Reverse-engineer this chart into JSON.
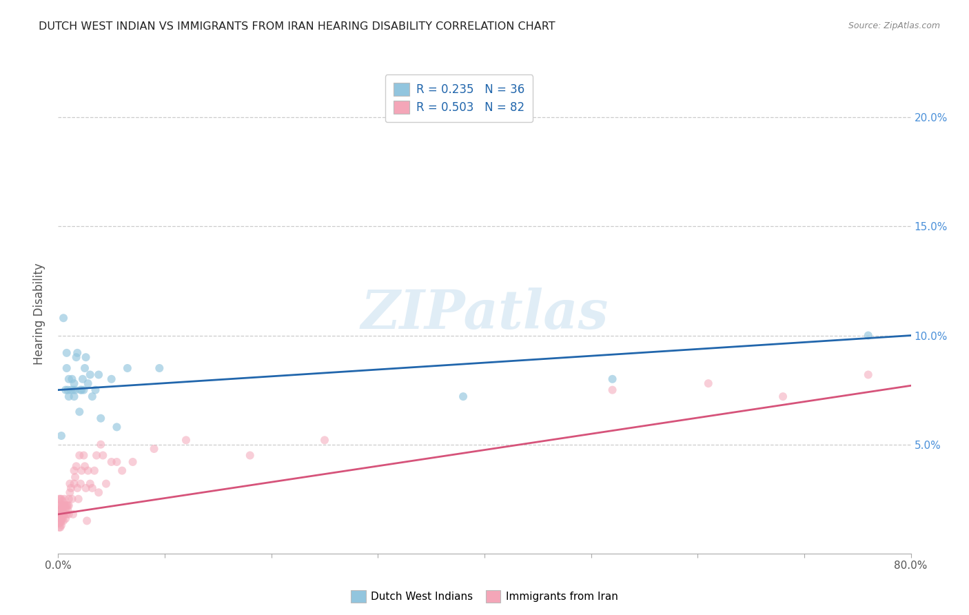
{
  "title": "DUTCH WEST INDIAN VS IMMIGRANTS FROM IRAN HEARING DISABILITY CORRELATION CHART",
  "source": "Source: ZipAtlas.com",
  "ylabel": "Hearing Disability",
  "xlim": [
    0,
    0.8
  ],
  "ylim": [
    0.0,
    0.22
  ],
  "xticks": [
    0.0,
    0.1,
    0.2,
    0.3,
    0.4,
    0.5,
    0.6,
    0.7,
    0.8
  ],
  "xtick_labels": [
    "0.0%",
    "",
    "",
    "",
    "",
    "",
    "",
    "",
    "80.0%"
  ],
  "yticks": [
    0.05,
    0.1,
    0.15,
    0.2
  ],
  "ytick_labels": [
    "5.0%",
    "10.0%",
    "15.0%",
    "20.0%"
  ],
  "blue_color": "#92c5de",
  "pink_color": "#f4a6b8",
  "blue_line_color": "#2166ac",
  "pink_line_color": "#d6537a",
  "legend1_r": "R = 0.235",
  "legend1_n": "N = 36",
  "legend2_r": "R = 0.503",
  "legend2_n": "N = 82",
  "legend_label1": "Dutch West Indians",
  "legend_label2": "Immigrants from Iran",
  "watermark": "ZIPatlas",
  "blue_scatter_x": [
    0.003,
    0.005,
    0.007,
    0.008,
    0.008,
    0.009,
    0.01,
    0.01,
    0.012,
    0.013,
    0.014,
    0.015,
    0.015,
    0.016,
    0.017,
    0.018,
    0.02,
    0.021,
    0.022,
    0.023,
    0.024,
    0.025,
    0.026,
    0.028,
    0.03,
    0.032,
    0.035,
    0.038,
    0.04,
    0.05,
    0.055,
    0.065,
    0.095,
    0.38,
    0.52,
    0.76
  ],
  "blue_scatter_y": [
    0.054,
    0.108,
    0.075,
    0.085,
    0.092,
    0.075,
    0.08,
    0.072,
    0.075,
    0.08,
    0.075,
    0.072,
    0.078,
    0.075,
    0.09,
    0.092,
    0.065,
    0.075,
    0.075,
    0.08,
    0.075,
    0.085,
    0.09,
    0.078,
    0.082,
    0.072,
    0.075,
    0.082,
    0.062,
    0.08,
    0.058,
    0.085,
    0.085,
    0.072,
    0.08,
    0.1
  ],
  "pink_scatter_x": [
    0.001,
    0.001,
    0.001,
    0.001,
    0.001,
    0.001,
    0.001,
    0.002,
    0.002,
    0.002,
    0.002,
    0.002,
    0.002,
    0.002,
    0.003,
    0.003,
    0.003,
    0.003,
    0.003,
    0.003,
    0.003,
    0.004,
    0.004,
    0.004,
    0.004,
    0.004,
    0.005,
    0.005,
    0.005,
    0.005,
    0.006,
    0.006,
    0.006,
    0.007,
    0.007,
    0.007,
    0.008,
    0.008,
    0.009,
    0.009,
    0.01,
    0.01,
    0.01,
    0.011,
    0.011,
    0.012,
    0.013,
    0.014,
    0.015,
    0.015,
    0.016,
    0.017,
    0.018,
    0.019,
    0.02,
    0.021,
    0.022,
    0.024,
    0.025,
    0.026,
    0.027,
    0.028,
    0.03,
    0.032,
    0.034,
    0.036,
    0.038,
    0.04,
    0.042,
    0.045,
    0.05,
    0.055,
    0.06,
    0.07,
    0.09,
    0.12,
    0.18,
    0.25,
    0.52,
    0.61,
    0.68,
    0.76
  ],
  "pink_scatter_y": [
    0.025,
    0.022,
    0.02,
    0.018,
    0.016,
    0.014,
    0.012,
    0.022,
    0.02,
    0.018,
    0.016,
    0.014,
    0.025,
    0.012,
    0.022,
    0.02,
    0.018,
    0.016,
    0.015,
    0.013,
    0.025,
    0.022,
    0.02,
    0.018,
    0.016,
    0.024,
    0.022,
    0.02,
    0.018,
    0.015,
    0.025,
    0.022,
    0.018,
    0.022,
    0.02,
    0.016,
    0.022,
    0.018,
    0.022,
    0.02,
    0.025,
    0.022,
    0.018,
    0.032,
    0.028,
    0.03,
    0.025,
    0.018,
    0.038,
    0.032,
    0.035,
    0.04,
    0.03,
    0.025,
    0.045,
    0.032,
    0.038,
    0.045,
    0.04,
    0.03,
    0.015,
    0.038,
    0.032,
    0.03,
    0.038,
    0.045,
    0.028,
    0.05,
    0.045,
    0.032,
    0.042,
    0.042,
    0.038,
    0.042,
    0.048,
    0.052,
    0.045,
    0.052,
    0.075,
    0.078,
    0.072,
    0.082
  ],
  "blue_trendline_x": [
    0.0,
    0.8
  ],
  "blue_trendline_y": [
    0.075,
    0.1
  ],
  "pink_trendline_x": [
    0.0,
    0.8
  ],
  "pink_trendline_y": [
    0.018,
    0.077
  ],
  "background_color": "#ffffff",
  "grid_color": "#cccccc",
  "title_color": "#222222",
  "axis_tick_color": "#555555",
  "right_yaxis_color": "#4a90d9",
  "source_color": "#888888",
  "legend_text_color": "#2166ac"
}
